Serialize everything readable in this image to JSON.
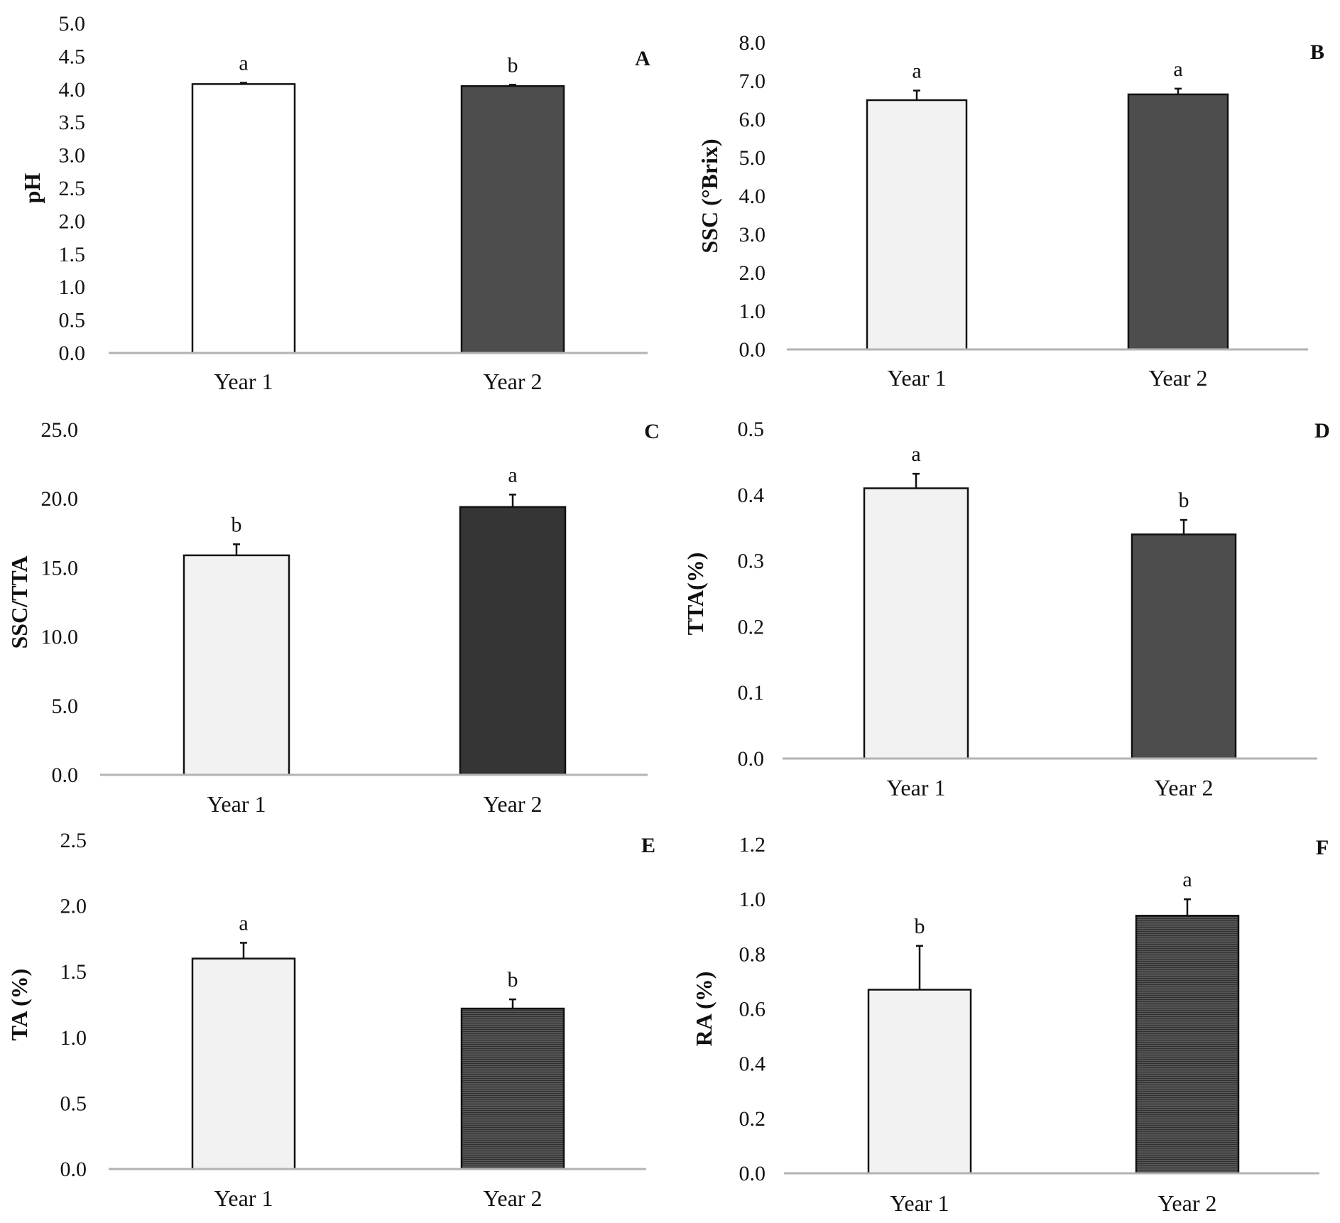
{
  "figure": {
    "colors": {
      "axis": "#b3b3b3",
      "bar_outline": "#111111",
      "white": "#ffffff",
      "light": "#f2f2f2",
      "dark": "#4d4d4d",
      "darker": "#353535",
      "hatched": "#4a4a4a"
    }
  },
  "chart_data": [
    {
      "panel": "A",
      "type": "bar",
      "categories": [
        "Year 1",
        "Year 2"
      ],
      "values": [
        4.08,
        4.05
      ],
      "errors": [
        0.02,
        0.02
      ],
      "significance": [
        "a",
        "b"
      ],
      "fills": [
        "white",
        "dark"
      ],
      "ylabel": "pH",
      "ylim": [
        0,
        5
      ],
      "yticks": [
        "0.0",
        "0.5",
        "1.0",
        "1.5",
        "2.0",
        "2.5",
        "3.0",
        "3.5",
        "4.0",
        "4.5",
        "5.0"
      ],
      "tick_step": 0.5
    },
    {
      "panel": "B",
      "type": "bar",
      "categories": [
        "Year 1",
        "Year 2"
      ],
      "values": [
        6.5,
        6.65
      ],
      "errors": [
        0.25,
        0.15
      ],
      "significance": [
        "a",
        "a"
      ],
      "fills": [
        "light",
        "dark"
      ],
      "ylabel": "SSC (°Brix)",
      "ylim": [
        0,
        8
      ],
      "yticks": [
        "0.0",
        "1.0",
        "2.0",
        "3.0",
        "4.0",
        "5.0",
        "6.0",
        "7.0",
        "8.0"
      ],
      "tick_step": 1
    },
    {
      "panel": "C",
      "type": "bar",
      "categories": [
        "Year 1",
        "Year 2"
      ],
      "values": [
        15.9,
        19.4
      ],
      "errors": [
        0.8,
        0.9
      ],
      "significance": [
        "b",
        "a"
      ],
      "fills": [
        "light",
        "darker"
      ],
      "ylabel": "SSC/TTA",
      "ylim": [
        0,
        25
      ],
      "yticks": [
        "0.0",
        "5.0",
        "10.0",
        "15.0",
        "20.0",
        "25.0"
      ],
      "tick_step": 5
    },
    {
      "panel": "D",
      "type": "bar",
      "categories": [
        "Year 1",
        "Year 2"
      ],
      "values": [
        0.41,
        0.34
      ],
      "errors": [
        0.022,
        0.022
      ],
      "significance": [
        "a",
        "b"
      ],
      "fills": [
        "light",
        "dark"
      ],
      "ylabel": "TTA(%)",
      "ylim": [
        0,
        0.5
      ],
      "yticks": [
        "0.0",
        "0.1",
        "0.2",
        "0.3",
        "0.4",
        "0.5"
      ],
      "tick_step": 0.1
    },
    {
      "panel": "E",
      "type": "bar",
      "categories": [
        "Year 1",
        "Year 2"
      ],
      "values": [
        1.6,
        1.22
      ],
      "errors": [
        0.12,
        0.07
      ],
      "significance": [
        "a",
        "b"
      ],
      "fills": [
        "light",
        "hatched"
      ],
      "ylabel": "TA (%)",
      "ylim": [
        0,
        2.5
      ],
      "yticks": [
        "0.0",
        "0.5",
        "1.0",
        "1.5",
        "2.0",
        "2.5"
      ],
      "tick_step": 0.5
    },
    {
      "panel": "F",
      "type": "bar",
      "categories": [
        "Year 1",
        "Year 2"
      ],
      "values": [
        0.67,
        0.94
      ],
      "errors": [
        0.16,
        0.06
      ],
      "significance": [
        "b",
        "a"
      ],
      "fills": [
        "light",
        "hatched"
      ],
      "ylabel": "RA (%)",
      "ylim": [
        0,
        1.2
      ],
      "yticks": [
        "0.0",
        "0.2",
        "0.4",
        "0.6",
        "0.8",
        "1.0",
        "1.2"
      ],
      "tick_step": 0.2
    }
  ]
}
